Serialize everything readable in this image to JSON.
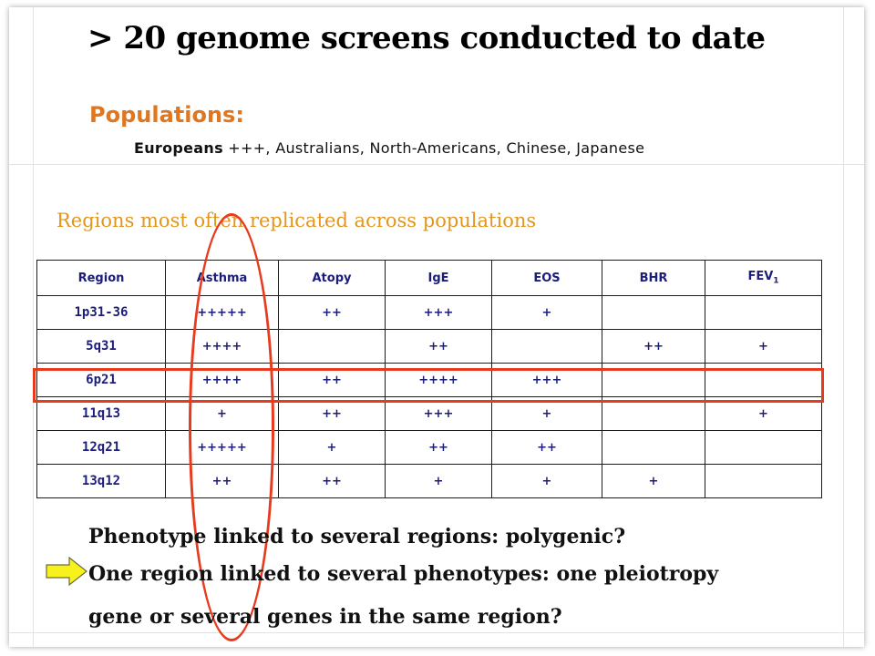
{
  "title": "> 20 genome screens conducted to date",
  "populations": {
    "label": "Populations:",
    "emphasis": "Europeans",
    "rest": " +++, Australians, North-Americans, Chinese, Japanese"
  },
  "regions_heading": "Regions most often replicated across populations",
  "table": {
    "headers": [
      "Region",
      "Asthma",
      "Atopy",
      "IgE",
      "EOS",
      "BHR",
      "FEV"
    ],
    "fev_subscript": "1",
    "rows": [
      [
        "1p31-36",
        "+++++",
        "++",
        "+++",
        "+",
        "",
        ""
      ],
      [
        "5q31",
        "++++",
        "",
        "++",
        "",
        "++",
        "+"
      ],
      [
        "6p21",
        "++++",
        "++",
        "++++",
        "+++",
        "",
        ""
      ],
      [
        "11q13",
        "+",
        "++",
        "+++",
        "+",
        "",
        "+"
      ],
      [
        "12q21",
        "+++++",
        "+",
        "++",
        "++",
        "",
        ""
      ],
      [
        "13q12",
        "++",
        "++",
        "+",
        "+",
        "+",
        ""
      ]
    ]
  },
  "statements": {
    "s1": "Phenotype linked to several regions: polygenic?",
    "s2": "One region linked to several phenotypes: one pleiotropy",
    "s3": "gene or several genes in the same region?"
  },
  "icons": {
    "arrow": "right-arrow-icon"
  },
  "colors": {
    "accent_orange": "#e0761f",
    "highlight_red": "#e63b1d",
    "arrow_yellow": "#f7f21c"
  }
}
